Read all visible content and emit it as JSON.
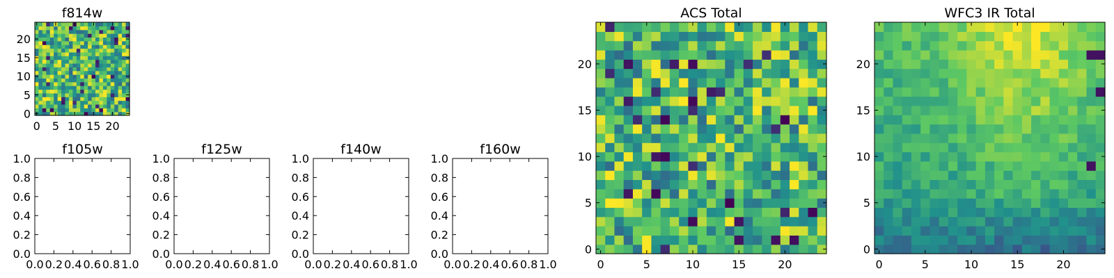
{
  "figure": {
    "colormap": [
      "#440154",
      "#3b528b",
      "#21918c",
      "#5ec962",
      "#fde725"
    ],
    "axis_color": "#000000",
    "background": "#ffffff"
  },
  "chart_data": [
    {
      "id": "f814w",
      "type": "heatmap",
      "title": "f814w",
      "grid_size": 25,
      "xlim": [
        -0.5,
        24.5
      ],
      "ylim": [
        -0.5,
        24.5
      ],
      "xticks": [
        0,
        5,
        10,
        15,
        20
      ],
      "yticks": [
        0,
        5,
        10,
        15,
        20
      ],
      "xtick_labels": [
        "0",
        "5",
        "10",
        "15",
        "20"
      ],
      "ytick_labels": [
        "0",
        "5",
        "10",
        "15",
        "20"
      ],
      "pattern": "noisy"
    },
    {
      "id": "f105w",
      "type": "empty",
      "title": "f105w",
      "xlim": [
        0,
        1
      ],
      "ylim": [
        0,
        1
      ],
      "xticks": [
        0,
        0.2,
        0.4,
        0.6,
        0.8,
        1.0
      ],
      "yticks": [
        0,
        0.2,
        0.4,
        0.6,
        0.8,
        1.0
      ],
      "xtick_labels": [
        "0.0",
        "0.2",
        "0.4",
        "0.6",
        "0.8",
        "1.0"
      ],
      "ytick_labels": [
        "0.0",
        "0.2",
        "0.4",
        "0.6",
        "0.8",
        "1.0"
      ]
    },
    {
      "id": "f125w",
      "type": "empty",
      "title": "f125w",
      "xlim": [
        0,
        1
      ],
      "ylim": [
        0,
        1
      ],
      "xticks": [
        0,
        0.2,
        0.4,
        0.6,
        0.8,
        1.0
      ],
      "yticks": [
        0,
        0.2,
        0.4,
        0.6,
        0.8,
        1.0
      ],
      "xtick_labels": [
        "0.0",
        "0.2",
        "0.4",
        "0.6",
        "0.8",
        "1.0"
      ],
      "ytick_labels": [
        "0.0",
        "0.2",
        "0.4",
        "0.6",
        "0.8",
        "1.0"
      ]
    },
    {
      "id": "f140w",
      "type": "empty",
      "title": "f140w",
      "xlim": [
        0,
        1
      ],
      "ylim": [
        0,
        1
      ],
      "xticks": [
        0,
        0.2,
        0.4,
        0.6,
        0.8,
        1.0
      ],
      "yticks": [
        0,
        0.2,
        0.4,
        0.6,
        0.8,
        1.0
      ],
      "xtick_labels": [
        "0.0",
        "0.2",
        "0.4",
        "0.6",
        "0.8",
        "1.0"
      ],
      "ytick_labels": [
        "0.0",
        "0.2",
        "0.4",
        "0.6",
        "0.8",
        "1.0"
      ]
    },
    {
      "id": "f160w",
      "type": "empty",
      "title": "f160w",
      "xlim": [
        0,
        1
      ],
      "ylim": [
        0,
        1
      ],
      "xticks": [
        0,
        0.2,
        0.4,
        0.6,
        0.8,
        1.0
      ],
      "yticks": [
        0,
        0.2,
        0.4,
        0.6,
        0.8,
        1.0
      ],
      "xtick_labels": [
        "0.0",
        "0.2",
        "0.4",
        "0.6",
        "0.8",
        "1.0"
      ],
      "ytick_labels": [
        "0.0",
        "0.2",
        "0.4",
        "0.6",
        "0.8",
        "1.0"
      ]
    },
    {
      "id": "acs-total",
      "type": "heatmap",
      "title": "ACS Total",
      "grid_size": 25,
      "xlim": [
        -0.5,
        24.5
      ],
      "ylim": [
        -0.5,
        24.5
      ],
      "xticks": [
        0,
        5,
        10,
        15,
        20
      ],
      "yticks": [
        0,
        5,
        10,
        15,
        20
      ],
      "xtick_labels": [
        "0",
        "5",
        "10",
        "15",
        "20"
      ],
      "ytick_labels": [
        "0",
        "5",
        "10",
        "15",
        "20"
      ],
      "pattern": "noisy"
    },
    {
      "id": "wfc3-ir-total",
      "type": "heatmap",
      "title": "WFC3 IR Total",
      "grid_size": 25,
      "xlim": [
        -0.5,
        24.5
      ],
      "ylim": [
        -0.5,
        24.5
      ],
      "xticks": [
        0,
        5,
        10,
        15,
        20
      ],
      "yticks": [
        0,
        5,
        10,
        15,
        20
      ],
      "xtick_labels": [
        "0",
        "5",
        "10",
        "15",
        "20"
      ],
      "ytick_labels": [
        "0",
        "5",
        "10",
        "15",
        "20"
      ],
      "pattern": "smooth"
    }
  ]
}
